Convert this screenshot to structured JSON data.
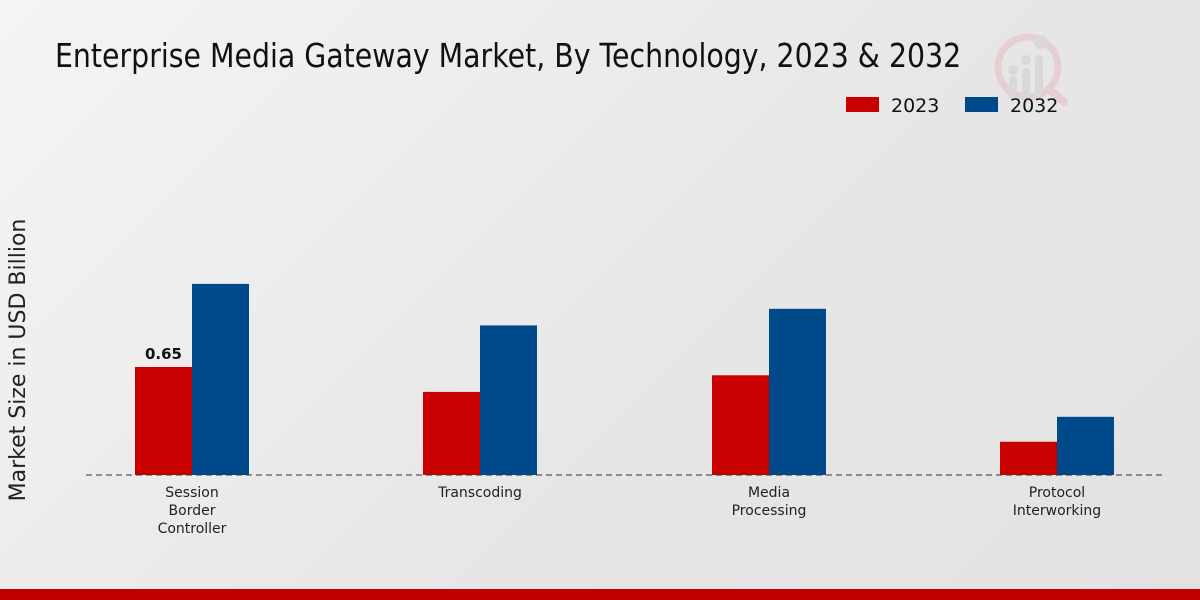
{
  "chart_data": {
    "type": "bar",
    "title": "Enterprise Media Gateway Market, By Technology, 2023 & 2032",
    "xlabel": "",
    "ylabel": "Market Size in USD Billion",
    "categories": [
      [
        "Session",
        "Border",
        "Controller"
      ],
      [
        "Transcoding"
      ],
      [
        "Media",
        "Processing"
      ],
      [
        "Protocol",
        "Interworking"
      ]
    ],
    "series": [
      {
        "name": "2023",
        "color": "#c80000",
        "values": [
          0.65,
          0.5,
          0.6,
          0.2
        ]
      },
      {
        "name": "2032",
        "color": "#004a8c",
        "values": [
          1.15,
          0.9,
          1.0,
          0.35
        ]
      }
    ],
    "data_labels": [
      {
        "series": 0,
        "category": 0,
        "text": "0.65"
      }
    ],
    "ylim": [
      0,
      1.4
    ],
    "grid": false,
    "legend": "top-right"
  }
}
